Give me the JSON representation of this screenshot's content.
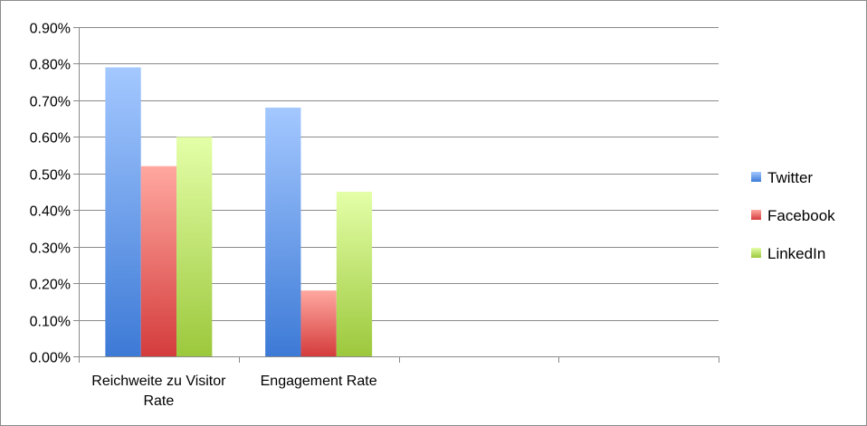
{
  "chart_data": {
    "type": "bar",
    "categories": [
      "Reichweite zu Visitor Rate",
      "Engagement Rate",
      "",
      ""
    ],
    "category_lines": [
      [
        "Reichweite zu Visitor",
        "Rate"
      ],
      [
        "Engagement Rate"
      ],
      [],
      []
    ],
    "series": [
      {
        "name": "Twitter",
        "values": [
          0.0079,
          0.0068,
          null,
          null
        ],
        "color": "#4a86e0"
      },
      {
        "name": "Facebook",
        "values": [
          0.0052,
          0.0018,
          null,
          null
        ],
        "color": "#e05050"
      },
      {
        "name": "LinkedIn",
        "values": [
          0.006,
          0.0045,
          null,
          null
        ],
        "color": "#a8d048"
      }
    ],
    "ylim": [
      0,
      0.009
    ],
    "y_ticks": [
      0,
      0.001,
      0.002,
      0.003,
      0.004,
      0.005,
      0.006,
      0.007,
      0.008,
      0.009
    ],
    "y_tick_labels": [
      "0.00%",
      "0.10%",
      "0.20%",
      "0.30%",
      "0.40%",
      "0.50%",
      "0.60%",
      "0.70%",
      "0.80%",
      "0.90%"
    ],
    "grid": true,
    "legend_position": "right",
    "title": "",
    "xlabel": "",
    "ylabel": ""
  }
}
